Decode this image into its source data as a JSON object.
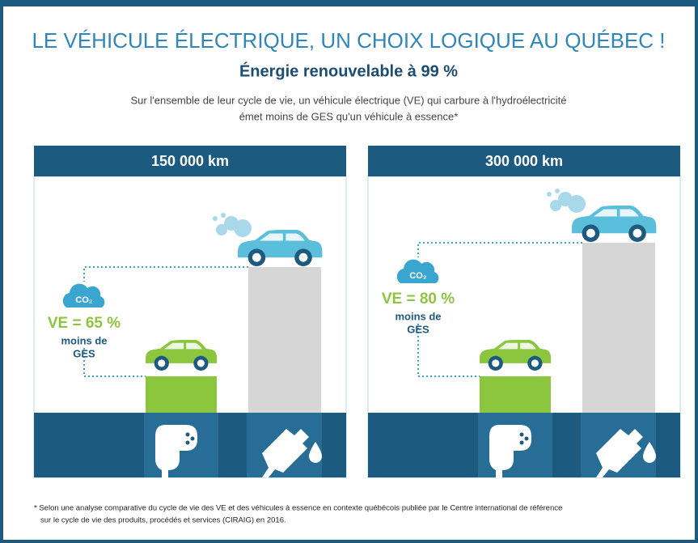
{
  "header": {
    "title": "LE VÉHICULE ÉLECTRIQUE, UN CHOIX LOGIQUE AU QUÉBEC !",
    "subtitle": "Énergie renouvelable à 99 %",
    "description": [
      "Sur l'ensemble de leur cycle de vie, un véhicule électrique (VE) qui carbure à l'hydroélectricité",
      "émet moins de GES qu'un véhicule à essence*"
    ]
  },
  "panels": [
    {
      "title": "150 000 km",
      "co2": "CO₂",
      "reduction": "VE = 65 %",
      "label": [
        "moins de",
        "GES"
      ]
    },
    {
      "title": "300 000 km",
      "co2": "CO₂",
      "reduction": "VE = 80 %",
      "label": [
        "moins de",
        "GES"
      ]
    }
  ],
  "footnote": [
    "* Selon une analyse comparative du cycle de vie des VE et des véhicules à essence en contexte québécois publiée par le Centre international de référence",
    "sur le cycle de vie des produits, procédés et services (CIRAIG) en 2016."
  ]
}
